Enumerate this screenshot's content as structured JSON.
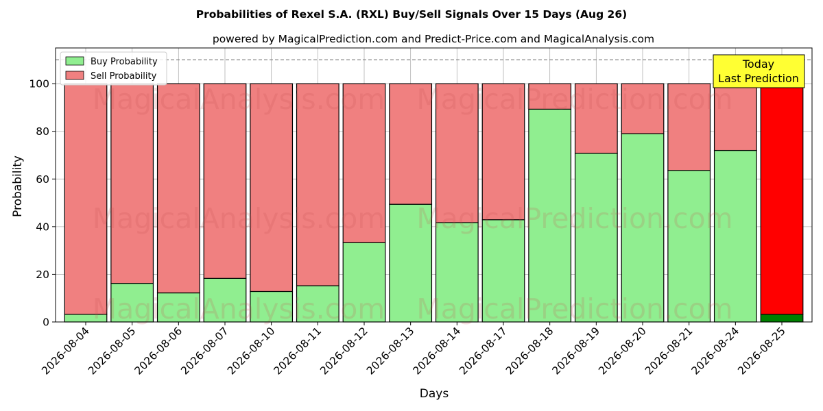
{
  "chart_data": {
    "type": "bar",
    "stacked": true,
    "title": "Probabilities of Rexel S.A. (RXL) Buy/Sell Signals Over 15 Days (Aug 26)",
    "subtitle": "powered by MagicalPrediction.com and Predict-Price.com and MagicalAnalysis.com",
    "xlabel": "Days",
    "ylabel": "Probability",
    "ylim": [
      0,
      115
    ],
    "yticks": [
      0,
      20,
      40,
      60,
      80,
      100
    ],
    "grid": true,
    "legend_position": "top-left",
    "reference_line": 110,
    "categories": [
      "2026-08-04",
      "2026-08-05",
      "2026-08-06",
      "2026-08-07",
      "2026-08-10",
      "2026-08-11",
      "2026-08-12",
      "2026-08-13",
      "2026-08-14",
      "2026-08-17",
      "2026-08-18",
      "2026-08-19",
      "2026-08-20",
      "2026-08-21",
      "2026-08-24",
      "2026-08-25"
    ],
    "series": [
      {
        "name": "Buy Probability",
        "color": "#90ee90",
        "highlight_color": "#008000",
        "values": [
          3.2,
          16.2,
          12.2,
          18.3,
          12.8,
          15.2,
          33.3,
          49.4,
          41.7,
          42.9,
          89.3,
          70.8,
          79.0,
          63.6,
          72.0,
          3.2
        ]
      },
      {
        "name": "Sell Probability",
        "color": "#f08080",
        "highlight_color": "#ff0000",
        "values": [
          96.8,
          83.8,
          87.8,
          81.7,
          87.2,
          84.8,
          66.7,
          50.6,
          58.3,
          57.1,
          10.7,
          29.2,
          21.0,
          36.4,
          28.0,
          96.8
        ]
      }
    ],
    "highlight_index": 15,
    "annotation": {
      "lines": [
        "Today",
        "Last Prediction"
      ],
      "background": "#ffff33"
    },
    "watermarks": [
      "MagicalAnalysis.com",
      "MagicalPrediction.com"
    ]
  }
}
